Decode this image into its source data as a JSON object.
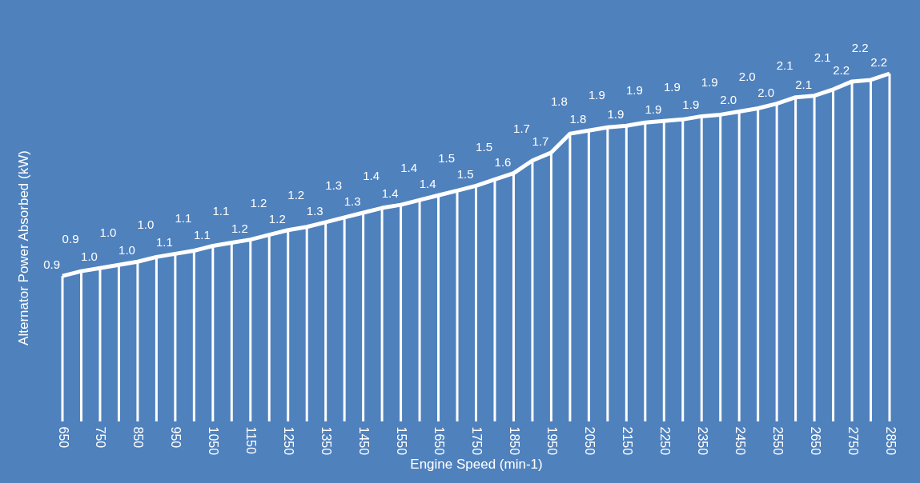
{
  "chart_data": {
    "type": "line",
    "xlabel": "Engine Speed (min-1)",
    "ylabel": "Alternator Power Absorbed (kW)",
    "x": [
      650,
      700,
      750,
      800,
      850,
      900,
      950,
      1000,
      1050,
      1100,
      1150,
      1200,
      1250,
      1300,
      1350,
      1400,
      1450,
      1500,
      1550,
      1600,
      1650,
      1700,
      1750,
      1800,
      1850,
      1900,
      1950,
      2000,
      2050,
      2100,
      2150,
      2200,
      2250,
      2300,
      2350,
      2400,
      2450,
      2500,
      2550,
      2600,
      2650,
      2700,
      2750,
      2800,
      2850
    ],
    "series": [
      {
        "color": "#ffffff",
        "values": [
          0.92,
          0.95,
          0.97,
          0.99,
          1.01,
          1.04,
          1.06,
          1.08,
          1.11,
          1.13,
          1.15,
          1.18,
          1.21,
          1.23,
          1.26,
          1.29,
          1.32,
          1.35,
          1.37,
          1.4,
          1.43,
          1.46,
          1.49,
          1.53,
          1.57,
          1.65,
          1.7,
          1.82,
          1.84,
          1.86,
          1.87,
          1.89,
          1.9,
          1.91,
          1.93,
          1.94,
          1.96,
          1.98,
          2.01,
          2.05,
          2.06,
          2.1,
          2.15,
          2.16,
          2.2
        ],
        "value_labels": [
          "0.9",
          "0.9",
          "1.0",
          "1.0",
          "1.0",
          "1.0",
          "1.1",
          "1.1",
          "1.1",
          "1.1",
          "1.2",
          "1.2",
          "1.2",
          "1.2",
          "1.3",
          "1.3",
          "1.3",
          "1.4",
          "1.4",
          "1.4",
          "1.4",
          "1.5",
          "1.5",
          "1.5",
          "1.6",
          "1.7",
          "1.7",
          "1.8",
          "1.8",
          "1.9",
          "1.9",
          "1.9",
          "1.9",
          "1.9",
          "1.9",
          "1.9",
          "2.0",
          "2.0",
          "2.0",
          "2.1",
          "2.1",
          "2.1",
          "2.2",
          "2.2",
          "2.2"
        ]
      }
    ],
    "xlim": [
      650,
      2850
    ],
    "xticks": [
      650,
      750,
      850,
      950,
      1050,
      1150,
      1250,
      1350,
      1450,
      1550,
      1650,
      1750,
      1850,
      1950,
      2050,
      2150,
      2250,
      2350,
      2450,
      2550,
      2650,
      2750,
      2850
    ],
    "tick_labels": "x",
    "grid": "x",
    "legend": false,
    "marker": "none",
    "line_style": "solid"
  }
}
